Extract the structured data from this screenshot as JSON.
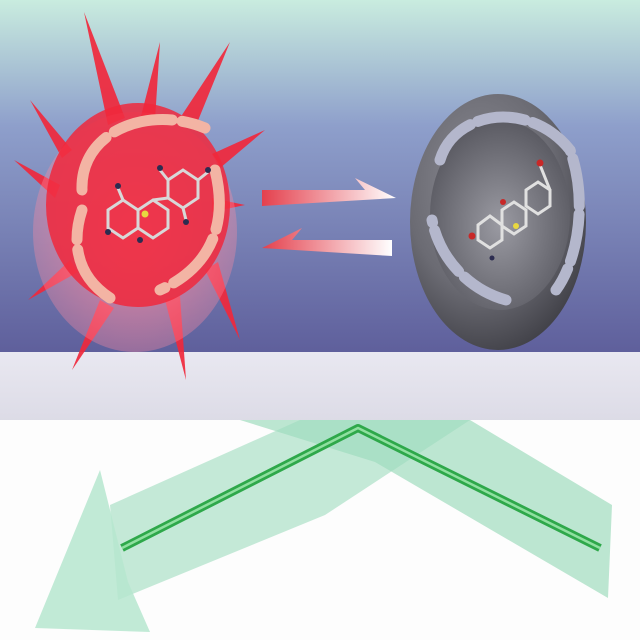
{
  "scene": {
    "background": {
      "gradient_top": "#c9ecdf",
      "gradient_mid": "#8e9fcb",
      "gradient_bottom": "#5d5d9a"
    },
    "surface": {
      "slab_color": "#e7e6ef",
      "floor_color": "#fdfdfd"
    },
    "left_molecule": {
      "state": "fluorescent",
      "starburst_color": "#f0283c",
      "glow_color": "#ff8aa0",
      "shell_color": "#f0283c",
      "cage_color": "#f3b4a4"
    },
    "right_molecule": {
      "state": "quenched",
      "shell_color": "#5f5f66",
      "cage_color": "#b4b7cc"
    },
    "equilibrium_arrows": {
      "color": "#e4404d",
      "fade_to": "#ffffff",
      "directions": [
        "forward",
        "reverse"
      ]
    },
    "light_beam": {
      "band_color": "#9fdcbe",
      "core_color": "#2ea84a",
      "arrow_direction": "lower-left"
    }
  }
}
